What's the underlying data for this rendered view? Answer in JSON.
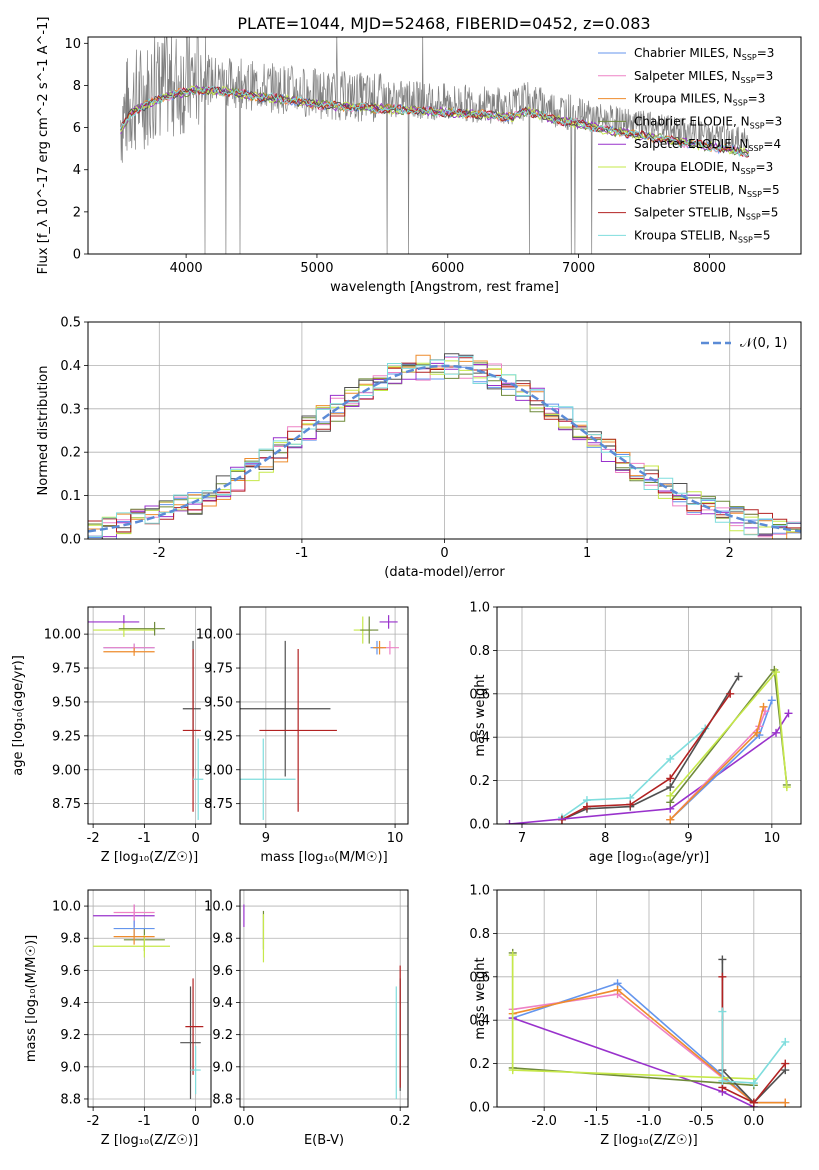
{
  "figure": {
    "title": "PLATE=1044, MJD=52468, FIBERID=0452, z=0.083"
  },
  "colors": {
    "Chabrier MILES": "#6495ed",
    "Salpeter MILES": "#ee82c6",
    "Kroupa MILES": "#ee8c2d",
    "Chabrier ELODIE": "#6f8a3a",
    "Salpeter ELODIE": "#9932cc",
    "Kroupa ELODIE": "#c6e84a",
    "Chabrier STELIB": "#505050",
    "Salpeter STELIB": "#b22222",
    "Kroupa STELIB": "#7fdddd",
    "data": "#808080",
    "normal": "#5b8bd6"
  },
  "chart_data": [
    {
      "id": "spectrum",
      "type": "line",
      "title": "PLATE=1044, MJD=52468, FIBERID=0452, z=0.083",
      "xlabel": "wavelength [Angstrom, rest frame]",
      "ylabel": "Flux [f_λ 10^-17 erg cm^-2 s^-1 A^-1]",
      "xlim": [
        3250,
        8700
      ],
      "ylim": [
        0,
        10.3
      ],
      "xticks": [
        4000,
        5000,
        6000,
        7000,
        8000
      ],
      "yticks": [
        0,
        2,
        4,
        6,
        8,
        10
      ],
      "legend_position": "top-right",
      "legend": [
        {
          "label": "Chabrier MILES, N",
          "sub": "SSP",
          "tail": "=3",
          "color": "#6495ed"
        },
        {
          "label": "Salpeter MILES, N",
          "sub": "SSP",
          "tail": "=3",
          "color": "#ee82c6"
        },
        {
          "label": "Kroupa MILES, N",
          "sub": "SSP",
          "tail": "=3",
          "color": "#ee8c2d"
        },
        {
          "label": "Chabrier ELODIE, N",
          "sub": "SSP",
          "tail": "=3",
          "color": "#6f8a3a"
        },
        {
          "label": "Salpeter ELODIE, N",
          "sub": "SSP",
          "tail": "=4",
          "color": "#9932cc"
        },
        {
          "label": "Kroupa ELODIE, N",
          "sub": "SSP",
          "tail": "=3",
          "color": "#c6e84a"
        },
        {
          "label": "Chabrier STELIB, N",
          "sub": "SSP",
          "tail": "=5",
          "color": "#505050"
        },
        {
          "label": "Salpeter STELIB, N",
          "sub": "SSP",
          "tail": "=5",
          "color": "#b22222"
        },
        {
          "label": "Kroupa STELIB, N",
          "sub": "SSP",
          "tail": "=5",
          "color": "#7fdddd"
        }
      ],
      "continuum": {
        "x": [
          3500,
          3580,
          3700,
          3850,
          4000,
          4100,
          4300,
          4500,
          4800,
          5000,
          5200,
          5500,
          5800,
          6000,
          6300,
          6500,
          6600,
          6800,
          7000,
          7200,
          7500,
          7800,
          8000,
          8300
        ],
        "y": [
          6.4,
          7.2,
          7.6,
          8.0,
          8.2,
          8.3,
          8.2,
          8.0,
          7.8,
          7.6,
          7.5,
          7.4,
          7.3,
          7.2,
          7.1,
          7.0,
          7.3,
          6.9,
          6.7,
          6.4,
          6.1,
          5.8,
          5.6,
          5.3
        ]
      }
    },
    {
      "id": "residuals",
      "type": "line",
      "xlabel": "(data-model)/error",
      "ylabel": "Normed distribution",
      "xlim": [
        -2.5,
        2.5
      ],
      "ylim": [
        0,
        0.5
      ],
      "xticks": [
        -2,
        -1,
        0,
        1,
        2
      ],
      "yticks": [
        0.0,
        0.1,
        0.2,
        0.3,
        0.4,
        0.5
      ],
      "legend": "𝒩(0, 1)",
      "legend_position": "top-right",
      "bin_width": 0.1
    },
    {
      "id": "age_vs_Z",
      "type": "scatter",
      "xlabel": "Z [log₁₀(Z/Z☉)]",
      "ylabel": "age  [log₁₀(age/yr)]",
      "xlim": [
        -2.1,
        0.3
      ],
      "ylim": [
        8.6,
        10.2
      ],
      "xticks": [
        -2,
        -1,
        0
      ],
      "yticks": [
        8.75,
        9.0,
        9.25,
        9.5,
        9.75,
        10.0
      ],
      "points": [
        {
          "model": "Salpeter ELODIE",
          "x": -1.4,
          "xerr": [
            0.8,
            0.3
          ],
          "y": 10.09,
          "yerr": 0.05
        },
        {
          "model": "Kroupa ELODIE",
          "x": -1.4,
          "xerr": [
            0.6,
            0.6
          ],
          "y": 10.03,
          "yerr": 0.05
        },
        {
          "model": "Chabrier ELODIE",
          "x": -0.8,
          "xerr": [
            0.7,
            0.2
          ],
          "y": 10.04,
          "yerr": 0.05
        },
        {
          "model": "Chabrier MILES",
          "x": -1.2,
          "xerr": [
            0.6,
            0.4
          ],
          "y": 9.9,
          "yerr": 0.03
        },
        {
          "model": "Salpeter MILES",
          "x": -1.2,
          "xerr": [
            0.6,
            0.4
          ],
          "y": 9.9,
          "yerr": 0.03
        },
        {
          "model": "Kroupa MILES",
          "x": -1.2,
          "xerr": [
            0.6,
            0.4
          ],
          "y": 9.87,
          "yerr": 0.03
        },
        {
          "model": "Chabrier STELIB",
          "x": -0.05,
          "xerr": [
            0.2,
            0.15
          ],
          "y": 9.45,
          "yerr": 0.5
        },
        {
          "model": "Salpeter STELIB",
          "x": -0.05,
          "xerr": [
            0.2,
            0.15
          ],
          "y": 9.29,
          "yerr": 0.6
        },
        {
          "model": "Kroupa STELIB",
          "x": 0.05,
          "xerr": [
            0.1,
            0.1
          ],
          "y": 8.93,
          "yerr": 0.3
        }
      ]
    },
    {
      "id": "age_vs_mass",
      "type": "scatter",
      "xlabel": "mass [log₁₀(M/M☉)]",
      "ylabel": "",
      "xlim": [
        8.8,
        10.1
      ],
      "ylim": [
        8.6,
        10.2
      ],
      "xticks": [
        9,
        10
      ],
      "yticks": [
        8.75,
        9.0,
        9.25,
        9.5,
        9.75,
        10.0
      ],
      "points": [
        {
          "model": "Salpeter ELODIE",
          "x": 9.95,
          "xerr": [
            0.07,
            0.07
          ],
          "y": 10.09,
          "yerr": 0.05
        },
        {
          "model": "Kroupa ELODIE",
          "x": 9.75,
          "xerr": [
            0.07,
            0.07
          ],
          "y": 10.03,
          "yerr": 0.1
        },
        {
          "model": "Chabrier ELODIE",
          "x": 9.8,
          "xerr": [
            0.07,
            0.07
          ],
          "y": 10.03,
          "yerr": 0.1
        },
        {
          "model": "Chabrier MILES",
          "x": 9.86,
          "xerr": [
            0.05,
            0.05
          ],
          "y": 9.9,
          "yerr": 0.05
        },
        {
          "model": "Salpeter MILES",
          "x": 9.96,
          "xerr": [
            0.07,
            0.07
          ],
          "y": 9.9,
          "yerr": 0.05
        },
        {
          "model": "Kroupa MILES",
          "x": 9.88,
          "xerr": [
            0.05,
            0.05
          ],
          "y": 9.9,
          "yerr": 0.05
        },
        {
          "model": "Chabrier STELIB",
          "x": 9.15,
          "xerr": [
            0.35,
            0.35
          ],
          "y": 9.45,
          "yerr": 0.5
        },
        {
          "model": "Salpeter STELIB",
          "x": 9.25,
          "xerr": [
            0.3,
            0.3
          ],
          "y": 9.29,
          "yerr": 0.6
        },
        {
          "model": "Kroupa STELIB",
          "x": 8.98,
          "xerr": [
            0.25,
            0.25
          ],
          "y": 8.93,
          "yerr": 0.3
        }
      ]
    },
    {
      "id": "massweight_vs_age",
      "type": "line",
      "xlabel": "age  [log₁₀(age/yr)]",
      "ylabel": "mass weight",
      "xlim": [
        6.7,
        10.35
      ],
      "ylim": [
        0,
        1.0
      ],
      "xticks": [
        7,
        8,
        9,
        10
      ],
      "yticks": [
        0.0,
        0.2,
        0.4,
        0.6,
        0.8,
        1.0
      ],
      "series": [
        {
          "model": "Kroupa STELIB",
          "x": [
            7.48,
            7.78,
            8.3,
            8.78,
            9.2
          ],
          "y": [
            0.03,
            0.11,
            0.12,
            0.3,
            0.44
          ]
        },
        {
          "model": "Chabrier STELIB",
          "x": [
            7.48,
            7.78,
            8.3,
            8.78,
            9.6
          ],
          "y": [
            0.02,
            0.07,
            0.08,
            0.17,
            0.68
          ]
        },
        {
          "model": "Salpeter STELIB",
          "x": [
            7.48,
            7.78,
            8.3,
            8.78,
            9.5
          ],
          "y": [
            0.02,
            0.08,
            0.09,
            0.21,
            0.6
          ]
        },
        {
          "model": "Salpeter ELODIE",
          "x": [
            6.85,
            8.78,
            10.05,
            10.2
          ],
          "y": [
            0.0,
            0.07,
            0.42,
            0.51
          ]
        },
        {
          "model": "Chabrier ELODIE",
          "x": [
            8.78,
            10.03,
            10.18
          ],
          "y": [
            0.1,
            0.71,
            0.18
          ]
        },
        {
          "model": "Kroupa ELODIE",
          "x": [
            8.78,
            10.05,
            10.18
          ],
          "y": [
            0.13,
            0.7,
            0.17
          ]
        },
        {
          "model": "Chabrier MILES",
          "x": [
            8.78,
            9.85,
            10.0
          ],
          "y": [
            0.02,
            0.41,
            0.57
          ]
        },
        {
          "model": "Salpeter MILES",
          "x": [
            8.78,
            9.85,
            9.92
          ],
          "y": [
            0.02,
            0.45,
            0.52
          ]
        },
        {
          "model": "Kroupa MILES",
          "x": [
            8.78,
            9.82,
            9.9
          ],
          "y": [
            0.02,
            0.42,
            0.54
          ]
        }
      ]
    },
    {
      "id": "mass_vs_Z",
      "type": "scatter",
      "xlabel": "Z [log₁₀(Z/Z☉)]",
      "ylabel": "mass [log₁₀(M/M☉)]",
      "xlim": [
        -2.1,
        0.3
      ],
      "ylim": [
        8.75,
        10.1
      ],
      "xticks": [
        -2,
        -1,
        0
      ],
      "yticks": [
        8.8,
        9.0,
        9.2,
        9.4,
        9.6,
        9.8,
        10.0
      ],
      "points": [
        {
          "model": "Salpeter ELODIE",
          "x": -1.2,
          "xerr": [
            0.8,
            0.4
          ],
          "y": 9.94,
          "yerr": 0.07
        },
        {
          "model": "Chabrier ELODIE",
          "x": -1.0,
          "xerr": [
            0.4,
            0.4
          ],
          "y": 9.79,
          "yerr": 0.07
        },
        {
          "model": "Kroupa ELODIE",
          "x": -1.0,
          "xerr": [
            1.0,
            0.5
          ],
          "y": 9.75,
          "yerr": 0.07
        },
        {
          "model": "Chabrier MILES",
          "x": -1.2,
          "xerr": [
            0.4,
            0.4
          ],
          "y": 9.86,
          "yerr": 0.05
        },
        {
          "model": "Salpeter MILES",
          "x": -1.2,
          "xerr": [
            0.4,
            0.4
          ],
          "y": 9.96,
          "yerr": 0.05
        },
        {
          "model": "Kroupa MILES",
          "x": -1.2,
          "xerr": [
            0.4,
            0.4
          ],
          "y": 9.81,
          "yerr": 0.05
        },
        {
          "model": "Chabrier STELIB",
          "x": -0.1,
          "xerr": [
            0.2,
            0.2
          ],
          "y": 9.15,
          "yerr": 0.35
        },
        {
          "model": "Salpeter STELIB",
          "x": -0.05,
          "xerr": [
            0.15,
            0.2
          ],
          "y": 9.25,
          "yerr": 0.3
        },
        {
          "model": "Kroupa STELIB",
          "x": 0.0,
          "xerr": [
            0.1,
            0.1
          ],
          "y": 8.98,
          "yerr": 0.15
        }
      ]
    },
    {
      "id": "mass_vs_ebv",
      "type": "scatter",
      "xlabel": "E(B-V)",
      "ylabel": "",
      "xlim": [
        -0.005,
        0.21
      ],
      "ylim": [
        8.75,
        10.1
      ],
      "xticks": [
        0.0,
        0.2
      ],
      "yticks": [
        8.8,
        9.0,
        9.2,
        9.4,
        9.6,
        9.8,
        10.0
      ],
      "points": [
        {
          "model": "Salpeter ELODIE",
          "x": 0.0,
          "y": 9.94,
          "yerr": 0.07
        },
        {
          "model": "Chabrier ELODIE",
          "x": 0.025,
          "y": 9.85,
          "yerr": 0.12
        },
        {
          "model": "Kroupa ELODIE",
          "x": 0.025,
          "y": 9.8,
          "yerr": 0.15
        },
        {
          "model": "Kroupa STELIB",
          "x": 0.195,
          "y": 9.15,
          "yerr": 0.35
        },
        {
          "model": "Chabrier STELIB",
          "x": 0.2,
          "y": 9.2,
          "yerr": 0.35
        },
        {
          "model": "Salpeter STELIB",
          "x": 0.2,
          "y": 9.25,
          "yerr": 0.38
        }
      ]
    },
    {
      "id": "massweight_vs_Z",
      "type": "line",
      "xlabel": "Z [log₁₀(Z/Z☉)]",
      "ylabel": "mass weight",
      "xlim": [
        -2.45,
        0.45
      ],
      "ylim": [
        0,
        1.0
      ],
      "xticks": [
        -2.0,
        -1.5,
        -1.0,
        -0.5,
        0.0
      ],
      "yticks": [
        0.0,
        0.2,
        0.4,
        0.6,
        0.8,
        1.0
      ],
      "series": [
        {
          "model": "Chabrier MILES",
          "x": [
            -2.3,
            -1.3,
            0.0,
            0.3
          ],
          "y": [
            0.41,
            0.57,
            0.02,
            0.02
          ]
        },
        {
          "model": "Salpeter MILES",
          "x": [
            -2.3,
            -1.3,
            0.0,
            0.3
          ],
          "y": [
            0.45,
            0.52,
            0.02,
            0.02
          ]
        },
        {
          "model": "Kroupa MILES",
          "x": [
            -2.3,
            -1.3,
            0.0,
            0.3
          ],
          "y": [
            0.43,
            0.54,
            0.02,
            0.02
          ]
        },
        {
          "model": "Salpeter ELODIE",
          "x": [
            -2.3,
            -0.3,
            0.0
          ],
          "y": [
            0.41,
            0.07,
            0.0
          ]
        },
        {
          "model": "Chabrier ELODIE",
          "x": [
            -2.3,
            -2.3,
            0.0
          ],
          "y": [
            0.71,
            0.18,
            0.1
          ]
        },
        {
          "model": "Kroupa ELODIE",
          "x": [
            -2.3,
            -2.3,
            0.0
          ],
          "y": [
            0.7,
            0.17,
            0.13
          ]
        },
        {
          "model": "Chabrier STELIB",
          "x": [
            -0.3,
            -0.3,
            0.0,
            0.3
          ],
          "y": [
            0.68,
            0.17,
            0.02,
            0.17
          ]
        },
        {
          "model": "Salpeter STELIB",
          "x": [
            -0.3,
            -0.3,
            0.0,
            0.3
          ],
          "y": [
            0.6,
            0.09,
            0.02,
            0.2
          ]
        },
        {
          "model": "Kroupa STELIB",
          "x": [
            -0.3,
            -0.3,
            0.0,
            0.3
          ],
          "y": [
            0.44,
            0.12,
            0.11,
            0.3
          ]
        }
      ]
    }
  ]
}
